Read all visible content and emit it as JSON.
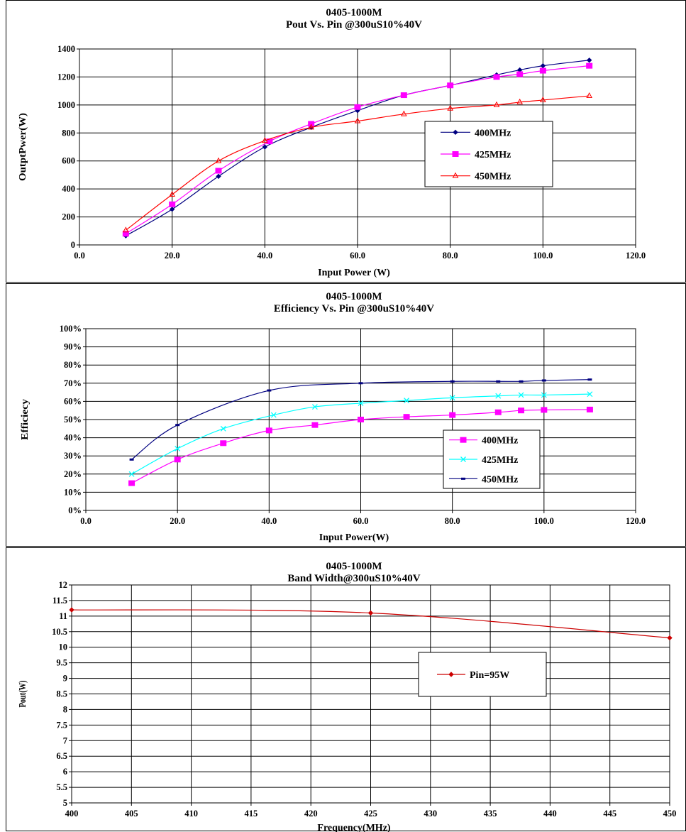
{
  "chart_data": [
    {
      "type": "line",
      "title": "0405-1000M",
      "subtitle": "Pout Vs. Pin @300uS10%40V",
      "xlabel": "Input Power (W)",
      "ylabel": "OutptPwer(W)",
      "xlim": [
        0,
        120
      ],
      "ylim": [
        0,
        1400
      ],
      "x_ticks": [
        "0.0",
        "20.0",
        "40.0",
        "60.0",
        "80.0",
        "100.0",
        "120.0"
      ],
      "y_ticks": [
        "0",
        "200",
        "400",
        "600",
        "800",
        "1000",
        "1200",
        "1400"
      ],
      "grid": true,
      "legend_position": "right",
      "series": [
        {
          "name": "400MHz",
          "color": "#000080",
          "marker": "diamond",
          "x": [
            10,
            20,
            30,
            40,
            50,
            60,
            70,
            80,
            90,
            95,
            100,
            110
          ],
          "y": [
            65,
            255,
            490,
            700,
            840,
            960,
            1070,
            1140,
            1215,
            1250,
            1280,
            1320
          ]
        },
        {
          "name": "425MHz",
          "color": "#ff00ff",
          "marker": "square",
          "x": [
            10,
            20,
            30,
            41,
            50,
            60,
            70,
            80,
            90,
            95,
            100,
            110
          ],
          "y": [
            80,
            290,
            530,
            740,
            865,
            985,
            1070,
            1140,
            1200,
            1220,
            1245,
            1280
          ]
        },
        {
          "name": "450MHz",
          "color": "#ff0000",
          "marker": "triangle",
          "x": [
            10,
            20,
            30,
            40,
            50,
            60,
            70,
            80,
            90,
            95,
            100,
            110
          ],
          "y": [
            105,
            360,
            600,
            745,
            840,
            885,
            935,
            975,
            1000,
            1020,
            1035,
            1065
          ]
        }
      ]
    },
    {
      "type": "line",
      "title": "0405-1000M",
      "subtitle": "Efficiency Vs. Pin @300uS10%40V",
      "xlabel": "Input Power(W)",
      "ylabel": "Efficiecy",
      "xlim": [
        0,
        120
      ],
      "ylim": [
        0,
        100
      ],
      "x_ticks": [
        "0.0",
        "20.0",
        "40.0",
        "60.0",
        "80.0",
        "100.0",
        "120.0"
      ],
      "y_ticks": [
        "0%",
        "10%",
        "20%",
        "30%",
        "40%",
        "50%",
        "60%",
        "70%",
        "80%",
        "90%",
        "100%"
      ],
      "grid": true,
      "legend_position": "right",
      "series": [
        {
          "name": "400MHz",
          "color": "#ff00ff",
          "marker": "square",
          "x": [
            10,
            20,
            30,
            40,
            50,
            60,
            70,
            80,
            90,
            95,
            100,
            110
          ],
          "y": [
            15,
            28,
            37,
            44,
            47,
            50,
            51.5,
            52.5,
            54,
            55,
            55.3,
            55.5
          ]
        },
        {
          "name": "425MHz",
          "color": "#00ffff",
          "marker": "x",
          "x": [
            10,
            20,
            30,
            41,
            50,
            60,
            70,
            80,
            90,
            95,
            100,
            110
          ],
          "y": [
            20,
            34,
            45,
            52.5,
            57,
            59,
            60.5,
            62,
            63,
            63.5,
            63.5,
            64
          ]
        },
        {
          "name": "450MHz",
          "color": "#000080",
          "marker": "dash",
          "x": [
            10,
            20,
            40,
            60,
            80,
            90,
            95,
            100,
            110
          ],
          "y": [
            28,
            47,
            66,
            70,
            71,
            71,
            71,
            71.5,
            72
          ]
        }
      ]
    },
    {
      "type": "line",
      "title": "0405-1000M",
      "subtitle": "Band Width@300uS10%40V",
      "xlabel": "Frequency(MHz)",
      "ylabel": "Pout(W)",
      "xlim": [
        400,
        450
      ],
      "ylim": [
        5,
        12
      ],
      "x_ticks": [
        "400",
        "405",
        "410",
        "415",
        "420",
        "425",
        "430",
        "435",
        "440",
        "445",
        "450"
      ],
      "y_ticks": [
        "5",
        "5.5",
        "6",
        "6.5",
        "7",
        "7.5",
        "8",
        "8.5",
        "9",
        "9.5",
        "10",
        "10.5",
        "11",
        "11.5",
        "12"
      ],
      "grid": true,
      "legend_position": "right",
      "series": [
        {
          "name": "Pin=95W",
          "color": "#cc0000",
          "marker": "diamond",
          "x": [
            400,
            425,
            450
          ],
          "y": [
            11.2,
            11.1,
            10.3
          ]
        }
      ]
    }
  ]
}
